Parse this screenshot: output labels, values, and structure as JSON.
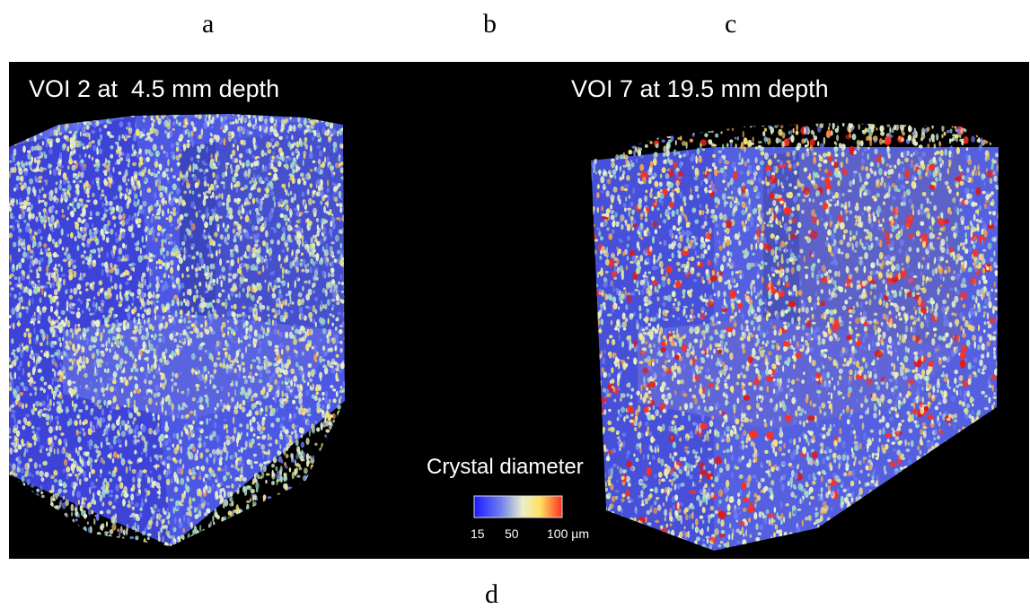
{
  "panel_letters": {
    "a": "a",
    "b": "b",
    "c": "c",
    "d": "d"
  },
  "left_volume": {
    "title": "VOI 2 at  4.5 mm depth"
  },
  "right_volume": {
    "title": "VOI 7 at 19.5 mm depth"
  },
  "legend": {
    "title": "Crystal diameter",
    "ticks": [
      "15",
      "50",
      "100 µm"
    ],
    "colors": [
      "#1a1aff",
      "#6f7cf0",
      "#e8f0c8",
      "#ffe060",
      "#ff3020"
    ]
  },
  "background_color": "#000000",
  "page_color": "#ffffff"
}
